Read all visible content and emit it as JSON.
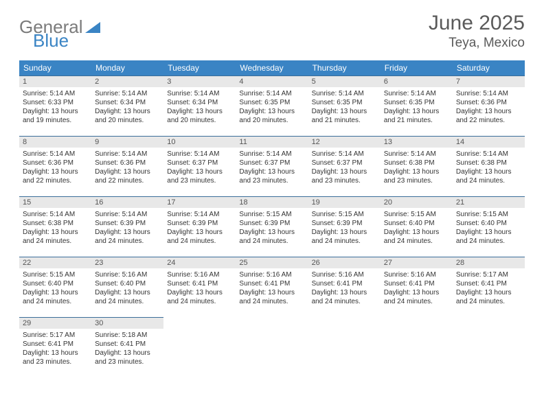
{
  "branding": {
    "word1": "General",
    "word2": "Blue"
  },
  "title": "June 2025",
  "location": "Teya, Mexico",
  "colors": {
    "header_bg": "#3a84c4",
    "header_text": "#ffffff",
    "daynum_bg": "#e8e8e8",
    "rule": "#3a6d99",
    "logo_gray": "#7b7b7b",
    "logo_blue": "#3a84c4",
    "text": "#333333"
  },
  "weekdays": [
    "Sunday",
    "Monday",
    "Tuesday",
    "Wednesday",
    "Thursday",
    "Friday",
    "Saturday"
  ],
  "weeks": [
    [
      {
        "n": "1",
        "sr": "5:14 AM",
        "ss": "6:33 PM",
        "dl": "13 hours and 19 minutes."
      },
      {
        "n": "2",
        "sr": "5:14 AM",
        "ss": "6:34 PM",
        "dl": "13 hours and 20 minutes."
      },
      {
        "n": "3",
        "sr": "5:14 AM",
        "ss": "6:34 PM",
        "dl": "13 hours and 20 minutes."
      },
      {
        "n": "4",
        "sr": "5:14 AM",
        "ss": "6:35 PM",
        "dl": "13 hours and 20 minutes."
      },
      {
        "n": "5",
        "sr": "5:14 AM",
        "ss": "6:35 PM",
        "dl": "13 hours and 21 minutes."
      },
      {
        "n": "6",
        "sr": "5:14 AM",
        "ss": "6:35 PM",
        "dl": "13 hours and 21 minutes."
      },
      {
        "n": "7",
        "sr": "5:14 AM",
        "ss": "6:36 PM",
        "dl": "13 hours and 22 minutes."
      }
    ],
    [
      {
        "n": "8",
        "sr": "5:14 AM",
        "ss": "6:36 PM",
        "dl": "13 hours and 22 minutes."
      },
      {
        "n": "9",
        "sr": "5:14 AM",
        "ss": "6:36 PM",
        "dl": "13 hours and 22 minutes."
      },
      {
        "n": "10",
        "sr": "5:14 AM",
        "ss": "6:37 PM",
        "dl": "13 hours and 23 minutes."
      },
      {
        "n": "11",
        "sr": "5:14 AM",
        "ss": "6:37 PM",
        "dl": "13 hours and 23 minutes."
      },
      {
        "n": "12",
        "sr": "5:14 AM",
        "ss": "6:37 PM",
        "dl": "13 hours and 23 minutes."
      },
      {
        "n": "13",
        "sr": "5:14 AM",
        "ss": "6:38 PM",
        "dl": "13 hours and 23 minutes."
      },
      {
        "n": "14",
        "sr": "5:14 AM",
        "ss": "6:38 PM",
        "dl": "13 hours and 24 minutes."
      }
    ],
    [
      {
        "n": "15",
        "sr": "5:14 AM",
        "ss": "6:38 PM",
        "dl": "13 hours and 24 minutes."
      },
      {
        "n": "16",
        "sr": "5:14 AM",
        "ss": "6:39 PM",
        "dl": "13 hours and 24 minutes."
      },
      {
        "n": "17",
        "sr": "5:14 AM",
        "ss": "6:39 PM",
        "dl": "13 hours and 24 minutes."
      },
      {
        "n": "18",
        "sr": "5:15 AM",
        "ss": "6:39 PM",
        "dl": "13 hours and 24 minutes."
      },
      {
        "n": "19",
        "sr": "5:15 AM",
        "ss": "6:39 PM",
        "dl": "13 hours and 24 minutes."
      },
      {
        "n": "20",
        "sr": "5:15 AM",
        "ss": "6:40 PM",
        "dl": "13 hours and 24 minutes."
      },
      {
        "n": "21",
        "sr": "5:15 AM",
        "ss": "6:40 PM",
        "dl": "13 hours and 24 minutes."
      }
    ],
    [
      {
        "n": "22",
        "sr": "5:15 AM",
        "ss": "6:40 PM",
        "dl": "13 hours and 24 minutes."
      },
      {
        "n": "23",
        "sr": "5:16 AM",
        "ss": "6:40 PM",
        "dl": "13 hours and 24 minutes."
      },
      {
        "n": "24",
        "sr": "5:16 AM",
        "ss": "6:41 PM",
        "dl": "13 hours and 24 minutes."
      },
      {
        "n": "25",
        "sr": "5:16 AM",
        "ss": "6:41 PM",
        "dl": "13 hours and 24 minutes."
      },
      {
        "n": "26",
        "sr": "5:16 AM",
        "ss": "6:41 PM",
        "dl": "13 hours and 24 minutes."
      },
      {
        "n": "27",
        "sr": "5:16 AM",
        "ss": "6:41 PM",
        "dl": "13 hours and 24 minutes."
      },
      {
        "n": "28",
        "sr": "5:17 AM",
        "ss": "6:41 PM",
        "dl": "13 hours and 24 minutes."
      }
    ],
    [
      {
        "n": "29",
        "sr": "5:17 AM",
        "ss": "6:41 PM",
        "dl": "13 hours and 23 minutes."
      },
      {
        "n": "30",
        "sr": "5:18 AM",
        "ss": "6:41 PM",
        "dl": "13 hours and 23 minutes."
      },
      null,
      null,
      null,
      null,
      null
    ]
  ],
  "labels": {
    "sunrise": "Sunrise:",
    "sunset": "Sunset:",
    "daylight": "Daylight:"
  }
}
